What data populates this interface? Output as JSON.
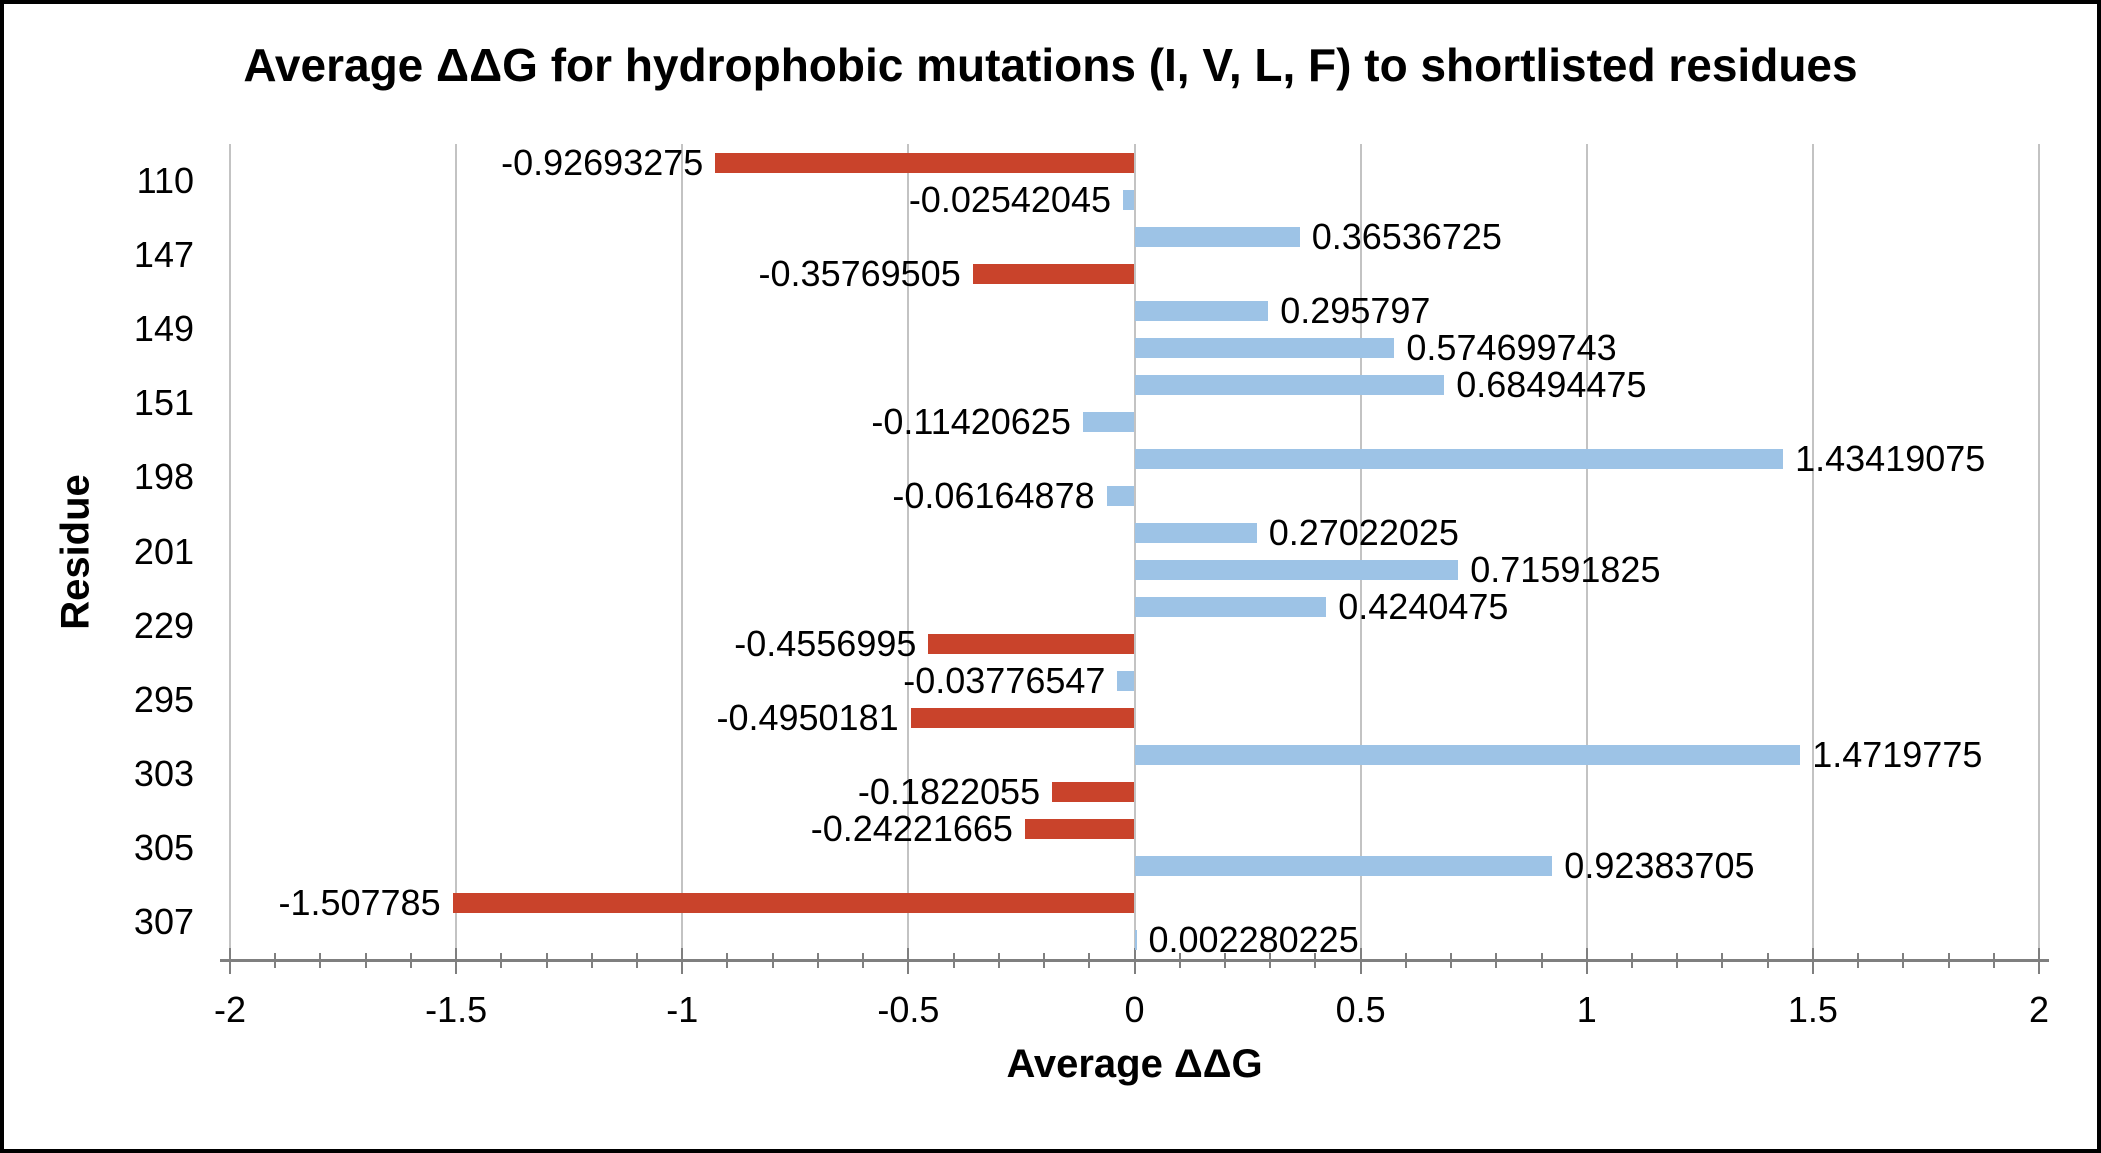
{
  "chart_data": {
    "type": "bar",
    "orientation": "horizontal",
    "title": "Average ΔΔG for hydrophobic mutations (I, V, L, F) to shortlisted residues",
    "xlabel": "Average ΔΔG",
    "ylabel": "Residue",
    "xlim": [
      -2,
      2
    ],
    "x_major_tick_step": 0.5,
    "x_minor_tick_step": 0.1,
    "x_ticks": [
      "-2",
      "-1.5",
      "-1",
      "-0.5",
      "0",
      "0.5",
      "1",
      "1.5",
      "2"
    ],
    "grid": "vertical-major",
    "legend": "none",
    "bar_value_labels": "outside-end",
    "categories": [
      "110",
      "147",
      "149",
      "151",
      "198",
      "201",
      "229",
      "295",
      "303",
      "305",
      "307"
    ],
    "groups": [
      {
        "category": "110",
        "bars": [
          {
            "value": -0.92693275,
            "label": "-0.92693275",
            "color": "red"
          },
          {
            "value": -0.02542045,
            "label": "-0.02542045",
            "color": "blue"
          }
        ]
      },
      {
        "category": "147",
        "bars": [
          {
            "value": 0.36536725,
            "label": "0.36536725",
            "color": "blue"
          },
          {
            "value": -0.35769505,
            "label": "-0.35769505",
            "color": "red"
          }
        ]
      },
      {
        "category": "149",
        "bars": [
          {
            "value": 0.295797,
            "label": "0.295797",
            "color": "blue"
          },
          {
            "value": 0.574699743,
            "label": "0.574699743",
            "color": "blue"
          }
        ]
      },
      {
        "category": "151",
        "bars": [
          {
            "value": 0.68494475,
            "label": "0.68494475",
            "color": "blue"
          },
          {
            "value": -0.11420625,
            "label": "-0.11420625",
            "color": "blue"
          }
        ]
      },
      {
        "category": "198",
        "bars": [
          {
            "value": 1.43419075,
            "label": "1.43419075",
            "color": "blue"
          },
          {
            "value": -0.06164878,
            "label": "-0.06164878",
            "color": "blue"
          }
        ]
      },
      {
        "category": "201",
        "bars": [
          {
            "value": 0.27022025,
            "label": "0.27022025",
            "color": "blue"
          },
          {
            "value": 0.71591825,
            "label": "0.71591825",
            "color": "blue"
          }
        ]
      },
      {
        "category": "229",
        "bars": [
          {
            "value": 0.4240475,
            "label": "0.4240475",
            "color": "blue"
          },
          {
            "value": -0.4556995,
            "label": "-0.4556995",
            "color": "red"
          }
        ]
      },
      {
        "category": "295",
        "bars": [
          {
            "value": -0.03776547,
            "label": "-0.03776547",
            "color": "blue"
          },
          {
            "value": -0.4950181,
            "label": "-0.4950181",
            "color": "red"
          }
        ]
      },
      {
        "category": "303",
        "bars": [
          {
            "value": 1.4719775,
            "label": "1.4719775",
            "color": "blue"
          },
          {
            "value": -0.1822055,
            "label": "-0.1822055",
            "color": "red"
          }
        ]
      },
      {
        "category": "305",
        "bars": [
          {
            "value": -0.24221665,
            "label": "-0.24221665",
            "color": "red"
          },
          {
            "value": 0.92383705,
            "label": "0.92383705",
            "color": "blue"
          }
        ]
      },
      {
        "category": "307",
        "bars": [
          {
            "value": -1.507785,
            "label": "-1.507785",
            "color": "red"
          },
          {
            "value": 0.002280225,
            "label": "0.002280225",
            "color": "blue"
          }
        ]
      }
    ],
    "colors": {
      "red": "#C9432B",
      "blue": "#9DC3E6",
      "gridline": "#C3C3C3",
      "axis": "#7F7F7F",
      "text": "#000000"
    }
  }
}
